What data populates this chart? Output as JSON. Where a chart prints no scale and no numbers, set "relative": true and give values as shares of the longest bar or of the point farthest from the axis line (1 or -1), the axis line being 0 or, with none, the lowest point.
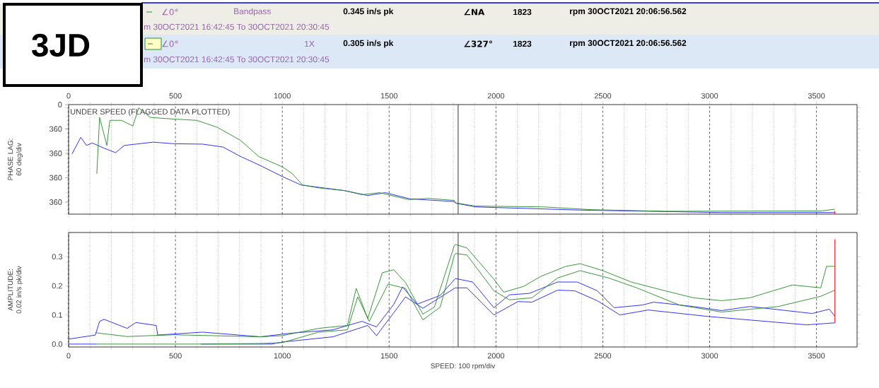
{
  "chart_data": [
    {
      "type": "line",
      "ylabel": "PHASE LAG: 60 deg/div",
      "relative": true,
      "annotations": [
        "∠0°",
        "Bandpass",
        "0.345 in/s pk",
        "∠NA",
        "1823",
        "rpm 30OCT2021 20:06:56.562",
        "m 30OCT2021 16:42:45 To 30OCT2021 20:30:45",
        "∠0°",
        "1X",
        "0.305 in/s pk",
        "∠327°",
        "1823",
        "rpm 30OCT2021 20:06:56.562",
        "m 30OCT2021 16:42:45 To 30OCT2021 20:30:45",
        "3JD",
        "UNDER SPEED (FLAGGED DATA PLOTTED)",
        "0",
        "360",
        "360",
        "360",
        "360"
      ],
      "xlim": [
        0,
        3690
      ],
      "xticks": [
        0,
        500,
        1000,
        1500,
        2000,
        2500,
        3000,
        3500
      ],
      "grid": "x",
      "ref_lines": [
        {
          "axis": "x",
          "value": 1823,
          "color": "#555555"
        }
      ],
      "series": [
        {
          "color": "#1a1aff",
          "x": [
            16,
            57,
            84,
            111,
            166,
            220,
            261,
            396,
            491,
            627,
            722,
            803,
            898,
            1000,
            1088,
            1292,
            1400,
            1482,
            1597,
            1805,
            1811,
            1904,
            2394,
            3056,
            3586
          ],
          "values": [
            0.567,
            0.722,
            0.646,
            0.669,
            0.62,
            0.578,
            0.646,
            0.677,
            0.662,
            0.658,
            0.631,
            0.544,
            0.456,
            0.354,
            0.274,
            0.221,
            0.175,
            0.202,
            0.144,
            0.118,
            0.103,
            0.068,
            0.038,
            0.015,
            0.015
          ]
        },
        {
          "color": "#228b22",
          "x": [
            132,
            145,
            179,
            193,
            247,
            301,
            328,
            383,
            491,
            600,
            695,
            803,
            891,
            1000,
            1047,
            1095,
            1170,
            1292,
            1373,
            1455,
            1590,
            1685,
            1805,
            1811,
            1904,
            2222,
            2447,
            2791,
            3520,
            3586
          ],
          "values": [
            0.38,
            0.909,
            0.646,
            0.882,
            0.882,
            0.829,
            1,
            0.909,
            0.894,
            0.882,
            0.817,
            0.696,
            0.54,
            0.445,
            0.38,
            0.274,
            0.247,
            0.221,
            0.183,
            0.202,
            0.137,
            0.148,
            0.129,
            0.106,
            0.076,
            0.068,
            0.042,
            0.027,
            0.03,
            0.046
          ]
        },
        {
          "color": "#ff0000",
          "x": [
            3586,
            3586
          ],
          "values": [
            0.03,
            0
          ]
        }
      ]
    },
    {
      "type": "line",
      "xlabel": "SPEED: 100 rpm/div",
      "ylabel": "AMPLITUDE: 0.02 in/s pk/div",
      "xlim": [
        0,
        3690
      ],
      "xticks": [
        0,
        500,
        1000,
        1500,
        2000,
        2500,
        3000,
        3500
      ],
      "ylim": [
        -0.01,
        0.383
      ],
      "yticks": [
        {
          "value": 0,
          "label": "0.0"
        },
        0.1,
        0.2,
        0.3
      ],
      "grid": "x",
      "ref_lines": [
        {
          "axis": "x",
          "value": 1823,
          "color": "#555555"
        }
      ],
      "series": [
        {
          "color": "#1a1aff",
          "x": [
            0,
            125,
            145,
            166,
            274,
            315,
            410,
            417,
            627,
            898,
            1034,
            1237,
            1373,
            1441,
            1522,
            1563,
            1631,
            1739,
            1805,
            1811,
            1891,
            1990,
            2063,
            2156,
            2288,
            2381,
            2474,
            2553,
            2685,
            2738,
            2924,
            3056,
            3189,
            3480,
            3560,
            3586
          ],
          "values": [
            0.017,
            0.031,
            0.078,
            0.085,
            0.054,
            0.074,
            0.064,
            0.031,
            0.041,
            0.025,
            0.037,
            0.049,
            0.078,
            0.059,
            0.137,
            0.196,
            0.137,
            0.167,
            0.221,
            0.225,
            0.213,
            0.125,
            0.169,
            0.174,
            0.213,
            0.213,
            0.183,
            0.125,
            0.134,
            0.144,
            0.129,
            0.115,
            0.129,
            0.105,
            0.12,
            0.095
          ]
        },
        {
          "color": "#1a1aff",
          "x": [
            0,
            132,
            300,
            620,
            950,
            1000,
            1237,
            1400,
            1441,
            1522,
            1577,
            1658,
            1805,
            1811,
            1864,
            1990,
            2103,
            2169,
            2288,
            2368,
            2474,
            2580,
            2712,
            2990,
            3454,
            3586
          ],
          "values": [
            0.0,
            0.0,
            null,
            0.0,
            0.0,
            0.007,
            0.025,
            0.064,
            0.029,
            0.108,
            0.162,
            0.123,
            0.191,
            0.193,
            0.193,
            0.1,
            0.146,
            0.144,
            0.185,
            0.183,
            0.149,
            0.1,
            0.117,
            0.095,
            0.066,
            0.073
          ]
        },
        {
          "color": "#228b22",
          "x": [
            125,
            274,
            491,
            898,
            1000,
            1170,
            1305,
            1346,
            1400,
            1468,
            1522,
            1577,
            1658,
            1712,
            1805,
            1811,
            1864,
            1990,
            2036,
            2129,
            2209,
            2328,
            2394,
            2500,
            2633,
            2791,
            2924,
            3056,
            3189,
            3388,
            3520,
            3547,
            3586
          ],
          "values": [
            0.039,
            0.026,
            0.032,
            0.025,
            0.029,
            0.054,
            0.064,
            0.191,
            0.088,
            0.245,
            0.255,
            0.211,
            0.103,
            0.127,
            0.338,
            0.342,
            0.33,
            0.223,
            0.178,
            0.198,
            0.232,
            0.267,
            0.276,
            0.252,
            0.213,
            0.183,
            0.159,
            0.149,
            0.159,
            0.203,
            0.193,
            0.267,
            0.267
          ]
        },
        {
          "color": "#228b22",
          "x": [
            132,
            600,
            898,
            1000,
            1170,
            1305,
            1353,
            1407,
            1495,
            1577,
            1658,
            1739,
            1805,
            1811,
            1864,
            1990,
            2063,
            2169,
            2288,
            2394,
            2527,
            2659,
            2858,
            3056,
            3321,
            3520,
            3586
          ],
          "values": [
            0.0,
            0.0,
            0.002,
            0.005,
            0.041,
            0.049,
            0.162,
            0.078,
            0.206,
            0.191,
            0.083,
            0.127,
            0.304,
            0.311,
            0.306,
            0.183,
            0.152,
            0.159,
            0.227,
            0.252,
            0.227,
            0.193,
            0.134,
            0.11,
            0.129,
            0.164,
            0.185
          ]
        },
        {
          "color": "#ff0000",
          "x": [
            3586,
            3586
          ],
          "values": [
            0.073,
            0.36
          ]
        }
      ]
    }
  ]
}
